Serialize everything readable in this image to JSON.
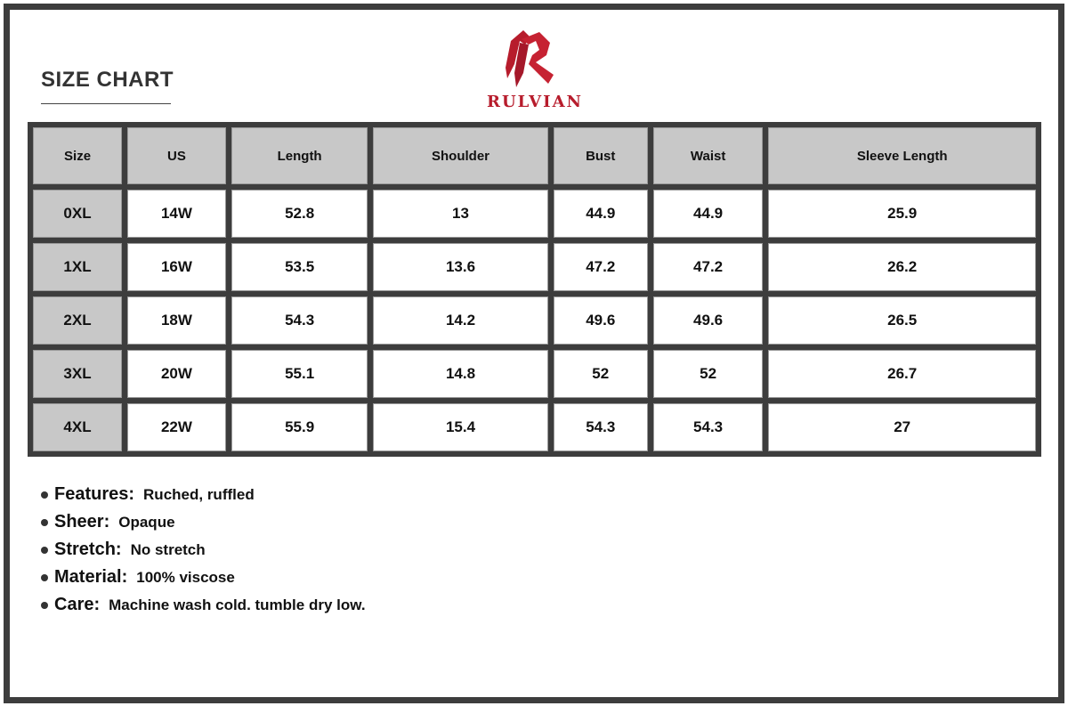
{
  "title": "SIZE CHART",
  "brand": {
    "name": "RULVIAN",
    "color": "#b71c2c",
    "logo": "r-monogram-logo"
  },
  "table": {
    "columns": [
      "Size",
      "US",
      "Length",
      "Shoulder",
      "Bust",
      "Waist",
      "Sleeve Length"
    ],
    "rows": [
      [
        "0XL",
        "14W",
        "52.8",
        "13",
        "44.9",
        "44.9",
        "25.9"
      ],
      [
        "1XL",
        "16W",
        "53.5",
        "13.6",
        "47.2",
        "47.2",
        "26.2"
      ],
      [
        "2XL",
        "18W",
        "54.3",
        "14.2",
        "49.6",
        "49.6",
        "26.5"
      ],
      [
        "3XL",
        "20W",
        "55.1",
        "14.8",
        "52",
        "52",
        "26.7"
      ],
      [
        "4XL",
        "22W",
        "55.9",
        "15.4",
        "54.3",
        "54.3",
        "27"
      ]
    ]
  },
  "notes": [
    {
      "label": "Features:",
      "value": "Ruched, ruffled"
    },
    {
      "label": "Sheer:",
      "value": "Opaque"
    },
    {
      "label": "Stretch:",
      "value": "No stretch"
    },
    {
      "label": "Material:",
      "value": "100% viscose"
    },
    {
      "label": "Care:",
      "value": "Machine wash cold. tumble dry low."
    }
  ]
}
